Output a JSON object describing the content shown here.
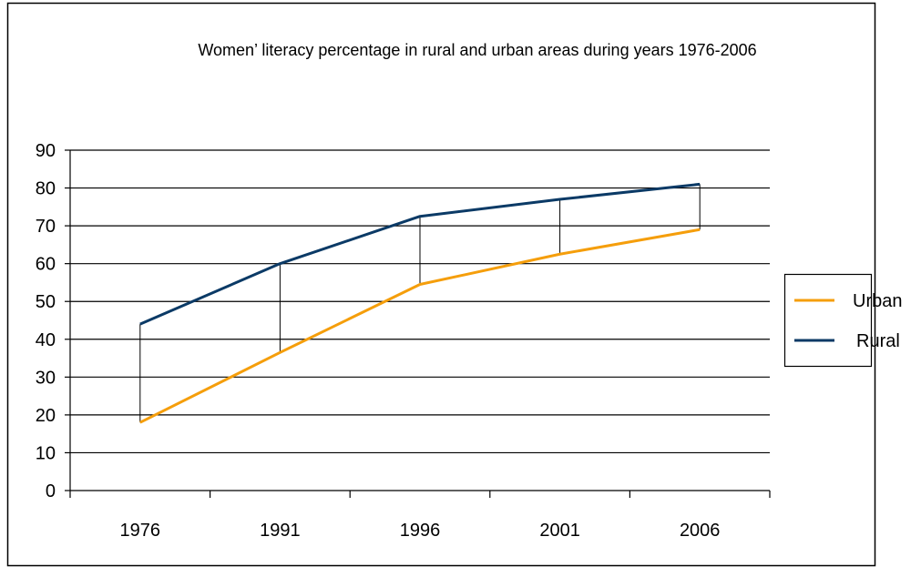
{
  "chart_data": {
    "type": "line",
    "title": "Women’ literacy percentage in rural and urban areas during years 1976-2006",
    "categories": [
      "1976",
      "1991",
      "1996",
      "2001",
      "2006"
    ],
    "ylim": [
      0,
      90
    ],
    "yticks": [
      "0",
      "10",
      "20",
      "30",
      "40",
      "50",
      "60",
      "70",
      "80",
      "90"
    ],
    "grid": true,
    "legend_position": "right",
    "drop_lines": true,
    "series": [
      {
        "name": "Urban",
        "color": "#f59e0b",
        "values": [
          18,
          36.5,
          54.5,
          62.5,
          69
        ]
      },
      {
        "name": "Rural",
        "color": "#0b3a66",
        "values": [
          44,
          60,
          72.5,
          77,
          81
        ]
      }
    ]
  }
}
